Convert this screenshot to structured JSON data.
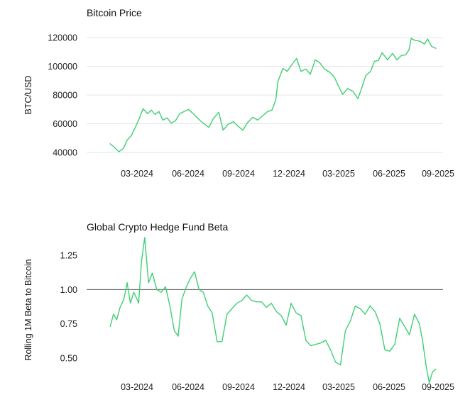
{
  "colors": {
    "series": "#3ecf73",
    "axis_text": "#222222",
    "grid": "#e6e6e6",
    "reference": "#555555"
  },
  "chart_data": [
    {
      "type": "line",
      "title": "Bitcoin Price",
      "xlabel": "",
      "ylabel": "BTC/USD",
      "x_ticks": [
        "03-2024",
        "06-2024",
        "09-2024",
        "12-2024",
        "03-2025",
        "06-2025",
        "09-2025"
      ],
      "y_ticks": [
        40000,
        60000,
        80000,
        100000,
        120000
      ],
      "ylim": [
        36000,
        122000
      ],
      "xlim": [
        "2024-01-01",
        "2025-09-15"
      ],
      "grid": "horizontal",
      "series": [
        {
          "name": "",
          "x": [
            "2024-01-12",
            "2024-01-20",
            "2024-01-28",
            "2024-02-05",
            "2024-02-12",
            "2024-02-20",
            "2024-02-28",
            "2024-03-05",
            "2024-03-12",
            "2024-03-20",
            "2024-03-27",
            "2024-04-03",
            "2024-04-10",
            "2024-04-17",
            "2024-04-25",
            "2024-05-02",
            "2024-05-10",
            "2024-05-18",
            "2024-05-26",
            "2024-06-03",
            "2024-06-10",
            "2024-06-18",
            "2024-06-26",
            "2024-07-03",
            "2024-07-10",
            "2024-07-18",
            "2024-07-28",
            "2024-08-05",
            "2024-08-14",
            "2024-08-24",
            "2024-09-02",
            "2024-09-10",
            "2024-09-18",
            "2024-09-28",
            "2024-10-07",
            "2024-10-16",
            "2024-10-25",
            "2024-11-02",
            "2024-11-09",
            "2024-11-13",
            "2024-11-22",
            "2024-11-30",
            "2024-12-08",
            "2024-12-17",
            "2024-12-25",
            "2025-01-03",
            "2025-01-11",
            "2025-01-20",
            "2025-01-28",
            "2025-02-06",
            "2025-02-15",
            "2025-02-24",
            "2025-03-03",
            "2025-03-11",
            "2025-03-20",
            "2025-03-30",
            "2025-04-08",
            "2025-04-15",
            "2025-04-22",
            "2025-05-01",
            "2025-05-08",
            "2025-05-15",
            "2025-05-22",
            "2025-06-01",
            "2025-06-10",
            "2025-06-18",
            "2025-06-26",
            "2025-07-04",
            "2025-07-10",
            "2025-07-14",
            "2025-07-21",
            "2025-07-30",
            "2025-08-07",
            "2025-08-13",
            "2025-08-20",
            "2025-08-28"
          ],
          "values": [
            46000,
            43500,
            40500,
            42800,
            48500,
            52000,
            58500,
            63500,
            70500,
            67000,
            69500,
            66500,
            68500,
            62500,
            64000,
            60500,
            62000,
            67000,
            68500,
            70000,
            67500,
            64500,
            61500,
            59500,
            57500,
            63500,
            68000,
            55500,
            59500,
            61500,
            58000,
            55500,
            60500,
            64500,
            62500,
            65500,
            68500,
            69500,
            76500,
            89500,
            98500,
            96500,
            101000,
            105500,
            96500,
            98000,
            94500,
            104500,
            102500,
            98000,
            96000,
            92500,
            86500,
            80500,
            84500,
            82500,
            77500,
            85000,
            93500,
            96500,
            103500,
            104000,
            109500,
            104500,
            109000,
            104500,
            107500,
            108000,
            111500,
            119500,
            118000,
            117500,
            115500,
            119000,
            114000,
            112500
          ]
        }
      ]
    },
    {
      "type": "line",
      "title": "Global Crypto Hedge Fund Beta",
      "xlabel": "",
      "ylabel": "Rolling 1M Beta to Bitcoin",
      "x_ticks": [
        "03-2024",
        "06-2024",
        "09-2024",
        "12-2024",
        "03-2025",
        "06-2025",
        "09-2025"
      ],
      "y_ticks": [
        0.5,
        0.75,
        1.0,
        1.25
      ],
      "ylim": [
        0.3,
        1.4
      ],
      "xlim": [
        "2024-01-01",
        "2025-09-15"
      ],
      "reference_line": 1.0,
      "grid": "none",
      "series": [
        {
          "name": "",
          "x": [
            "2024-01-12",
            "2024-01-18",
            "2024-01-24",
            "2024-01-30",
            "2024-02-06",
            "2024-02-12",
            "2024-02-18",
            "2024-02-24",
            "2024-03-01",
            "2024-03-04",
            "2024-03-09",
            "2024-03-15",
            "2024-03-22",
            "2024-03-29",
            "2024-04-06",
            "2024-04-14",
            "2024-04-22",
            "2024-04-30",
            "2024-05-08",
            "2024-05-15",
            "2024-05-22",
            "2024-05-30",
            "2024-06-06",
            "2024-06-14",
            "2024-06-22",
            "2024-06-30",
            "2024-07-08",
            "2024-07-16",
            "2024-07-25",
            "2024-08-03",
            "2024-08-12",
            "2024-08-21",
            "2024-08-30",
            "2024-09-08",
            "2024-09-17",
            "2024-09-26",
            "2024-10-05",
            "2024-10-14",
            "2024-10-23",
            "2024-11-01",
            "2024-11-10",
            "2024-11-19",
            "2024-11-28",
            "2024-12-07",
            "2024-12-16",
            "2024-12-25",
            "2025-01-03",
            "2025-01-12",
            "2025-01-21",
            "2025-01-30",
            "2025-02-08",
            "2025-02-17",
            "2025-02-26",
            "2025-03-07",
            "2025-03-16",
            "2025-03-25",
            "2025-04-03",
            "2025-04-12",
            "2025-04-21",
            "2025-04-30",
            "2025-05-09",
            "2025-05-18",
            "2025-05-27",
            "2025-06-05",
            "2025-06-14",
            "2025-06-23",
            "2025-07-02",
            "2025-07-11",
            "2025-07-20",
            "2025-07-29",
            "2025-08-04",
            "2025-08-10",
            "2025-08-16",
            "2025-08-22",
            "2025-08-28"
          ],
          "values": [
            0.73,
            0.82,
            0.78,
            0.87,
            0.93,
            1.05,
            0.9,
            0.98,
            0.93,
            0.9,
            1.2,
            1.38,
            1.05,
            1.12,
            1.0,
            0.98,
            1.02,
            0.88,
            0.7,
            0.66,
            0.93,
            1.02,
            1.08,
            1.13,
            1.0,
            0.98,
            0.88,
            0.83,
            0.62,
            0.62,
            0.82,
            0.86,
            0.9,
            0.92,
            0.96,
            0.92,
            0.91,
            0.91,
            0.87,
            0.9,
            0.84,
            0.81,
            0.74,
            0.9,
            0.83,
            0.81,
            0.63,
            0.59,
            0.6,
            0.61,
            0.63,
            0.56,
            0.47,
            0.45,
            0.7,
            0.77,
            0.88,
            0.86,
            0.82,
            0.88,
            0.84,
            0.75,
            0.56,
            0.55,
            0.6,
            0.79,
            0.73,
            0.67,
            0.82,
            0.75,
            0.62,
            0.45,
            0.32,
            0.4,
            0.42
          ]
        }
      ]
    }
  ]
}
